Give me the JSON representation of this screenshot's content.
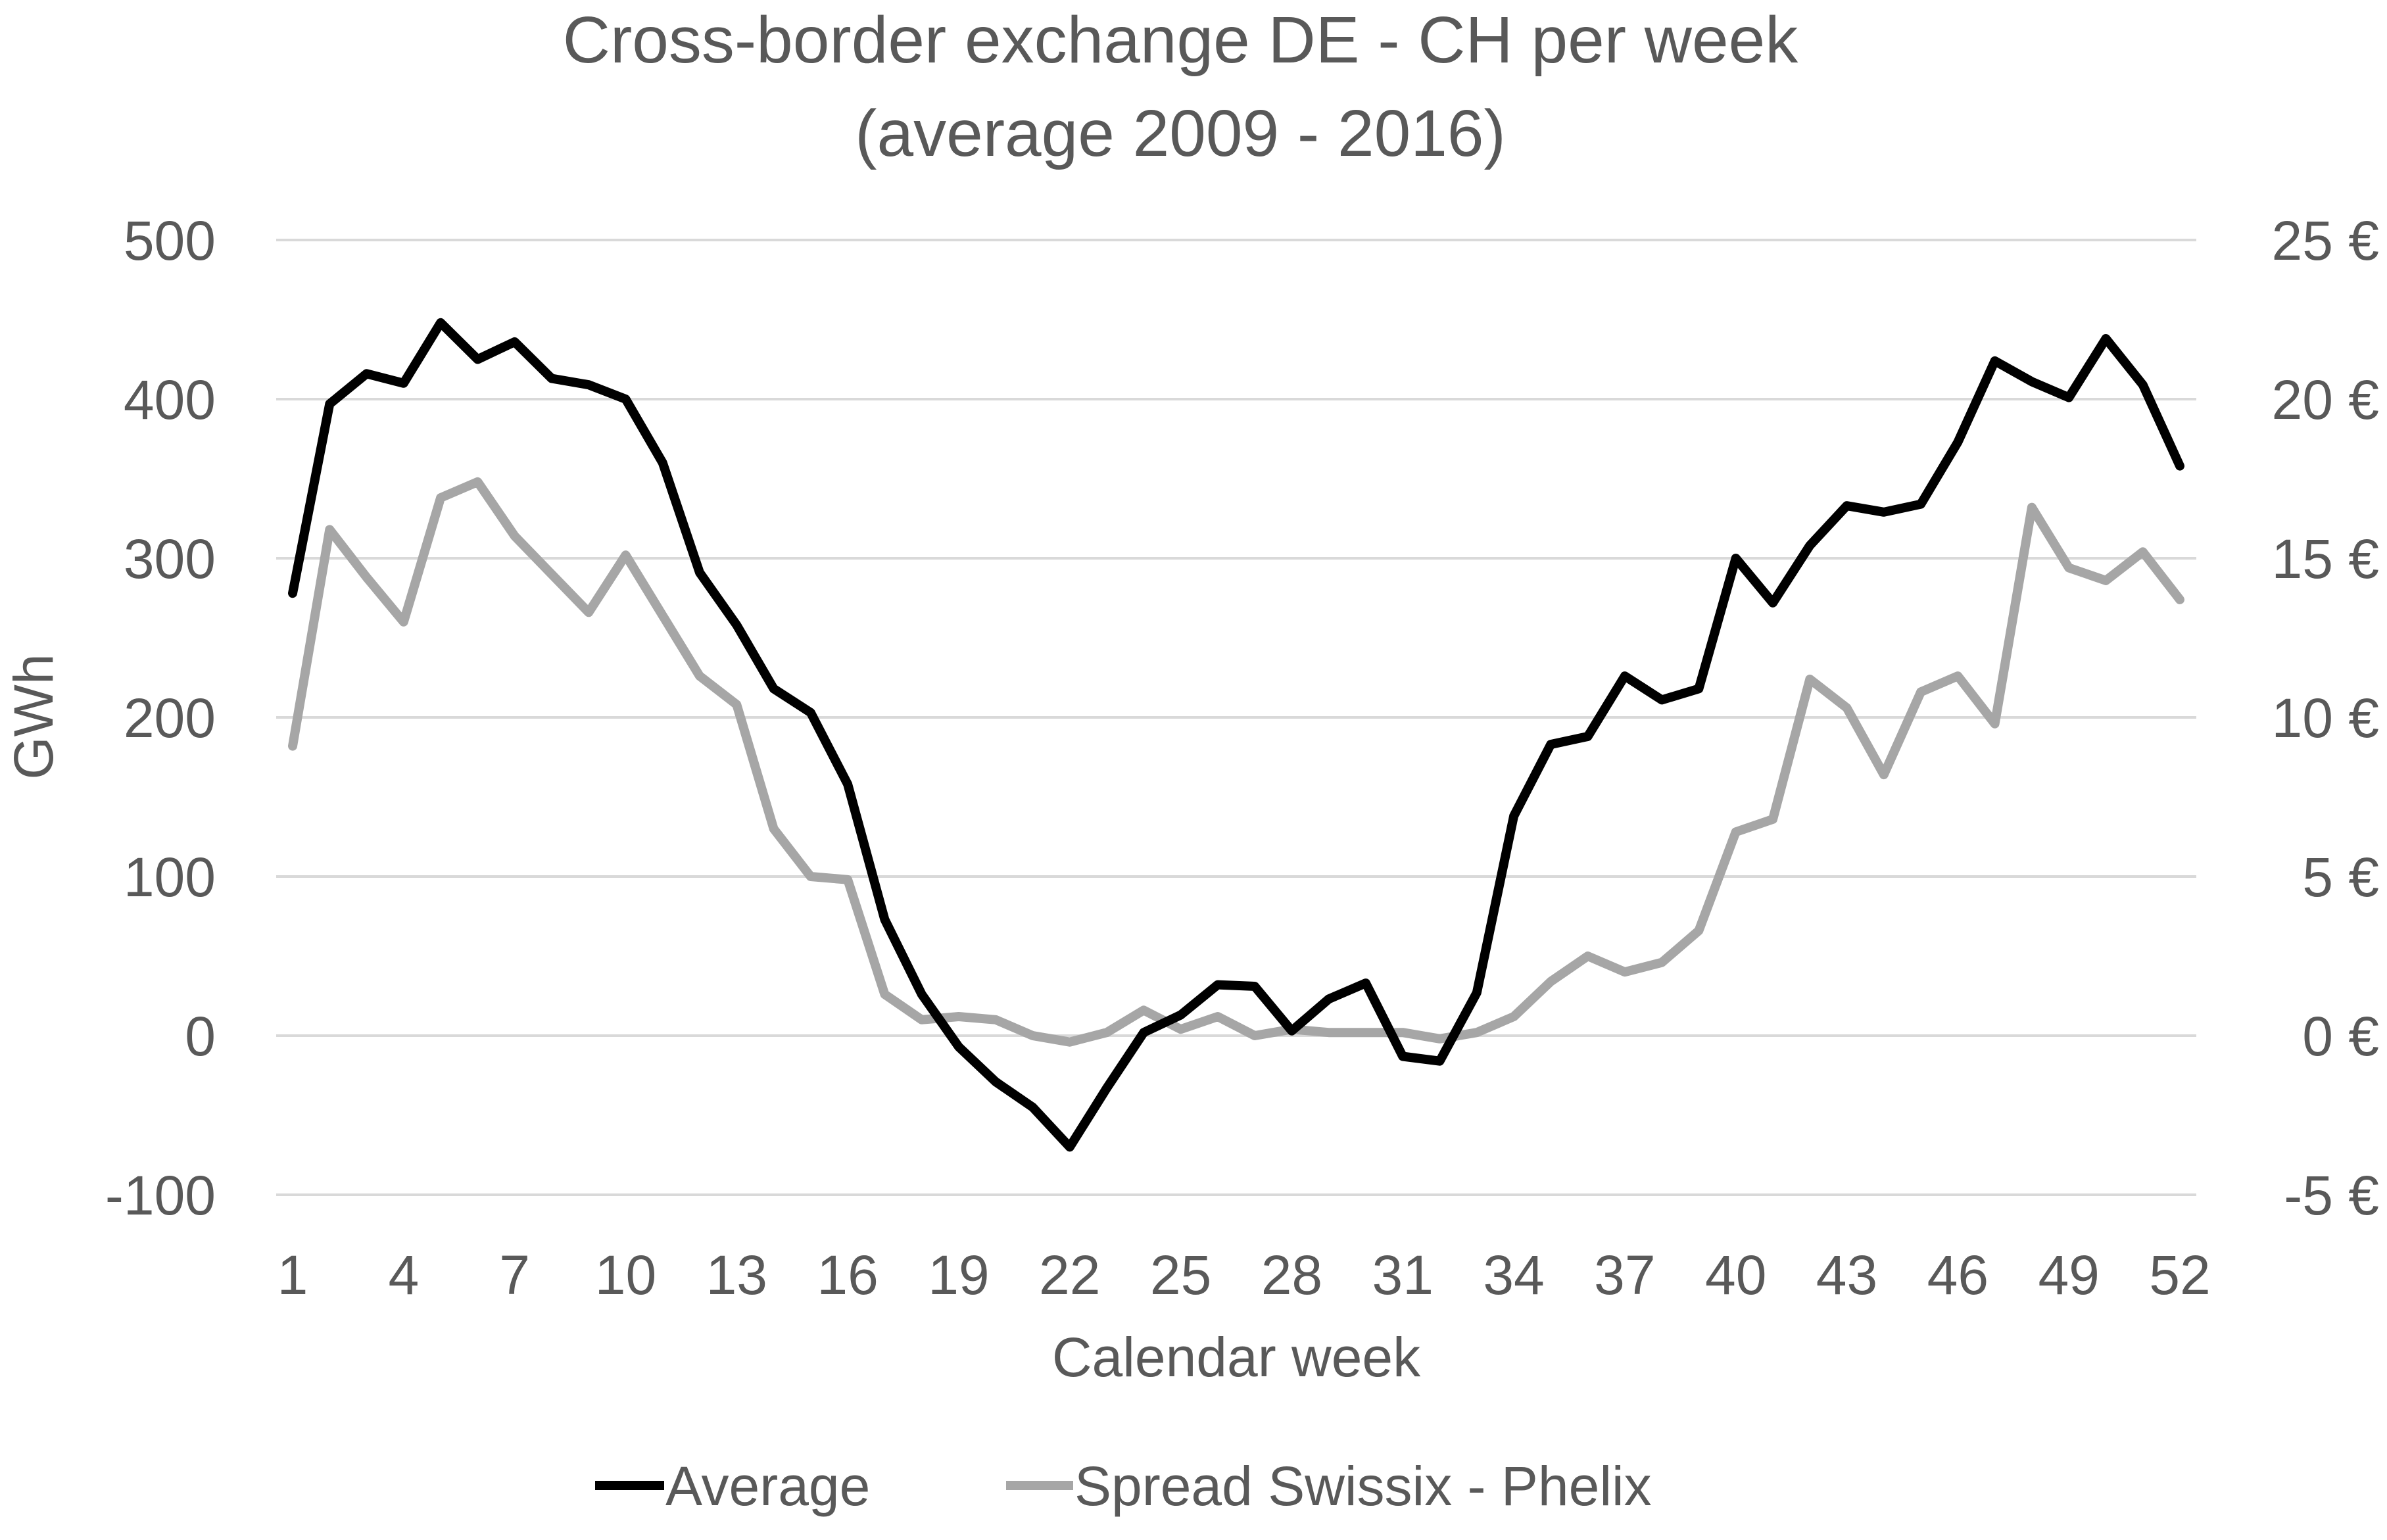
{
  "chart_data": {
    "type": "line",
    "title": [
      "Cross-border exchange DE - CH per week",
      "(average 2009 - 2016)"
    ],
    "xlabel": "Calendar week",
    "ylabel": "GWh",
    "ylabel_right": "",
    "x": [
      1,
      2,
      3,
      4,
      5,
      6,
      7,
      8,
      9,
      10,
      11,
      12,
      13,
      14,
      15,
      16,
      17,
      18,
      19,
      20,
      21,
      22,
      23,
      24,
      25,
      26,
      27,
      28,
      29,
      30,
      31,
      32,
      33,
      34,
      35,
      36,
      37,
      38,
      39,
      40,
      41,
      42,
      43,
      44,
      45,
      46,
      47,
      48,
      49,
      50,
      51,
      52
    ],
    "x_ticks": [
      1,
      4,
      7,
      10,
      13,
      16,
      19,
      22,
      25,
      28,
      31,
      34,
      37,
      40,
      43,
      46,
      49,
      52
    ],
    "x_tick_labels": [
      "1",
      "4",
      "7",
      "10",
      "13",
      "16",
      "19",
      "22",
      "25",
      "28",
      "31",
      "34",
      "37",
      "40",
      "43",
      "46",
      "49",
      "52"
    ],
    "ylim": [
      -100,
      500
    ],
    "y_ticks": [
      -100,
      0,
      100,
      200,
      300,
      400,
      500
    ],
    "y_tick_labels": [
      "-100",
      "0",
      "100",
      "200",
      "300",
      "400",
      "500"
    ],
    "y2lim": [
      -5,
      25
    ],
    "y2_ticks": [
      -5,
      0,
      5,
      10,
      15,
      20,
      25
    ],
    "y2_tick_labels": [
      "-5 €",
      "0 €",
      "5 €",
      "10 €",
      "15 €",
      "20 €",
      "25 €"
    ],
    "grid": true,
    "legend_position": "bottom",
    "series": [
      {
        "name": "Average",
        "axis": "left",
        "color": "#000000",
        "values": [
          278,
          397,
          416,
          410,
          448,
          425,
          436,
          413,
          409,
          400,
          360,
          291,
          258,
          218,
          203,
          158,
          73,
          26,
          -7,
          -29,
          -45,
          -70,
          -33,
          2,
          13,
          32,
          31,
          3,
          23,
          33,
          -13,
          -16,
          27,
          138,
          183,
          188,
          226,
          211,
          218,
          300,
          272,
          308,
          333,
          329,
          334,
          373,
          424,
          411,
          401,
          438,
          409,
          358
        ]
      },
      {
        "name": "Spread Swissix - Phelix",
        "axis": "right",
        "color": "#a6a6a6",
        "values": [
          9.1,
          15.9,
          14.4,
          13.0,
          16.9,
          17.4,
          15.7,
          14.5,
          13.3,
          15.1,
          13.2,
          11.3,
          10.4,
          6.5,
          5.0,
          4.9,
          1.3,
          0.5,
          0.6,
          0.5,
          0.0,
          -0.2,
          0.1,
          0.8,
          0.2,
          0.6,
          0.0,
          0.2,
          0.1,
          0.1,
          0.1,
          -0.1,
          0.1,
          0.6,
          1.7,
          2.5,
          2.0,
          2.3,
          3.3,
          6.4,
          6.8,
          11.2,
          10.3,
          8.2,
          10.8,
          11.3,
          9.8,
          16.6,
          14.7,
          14.3,
          15.2,
          13.7
        ]
      }
    ]
  }
}
